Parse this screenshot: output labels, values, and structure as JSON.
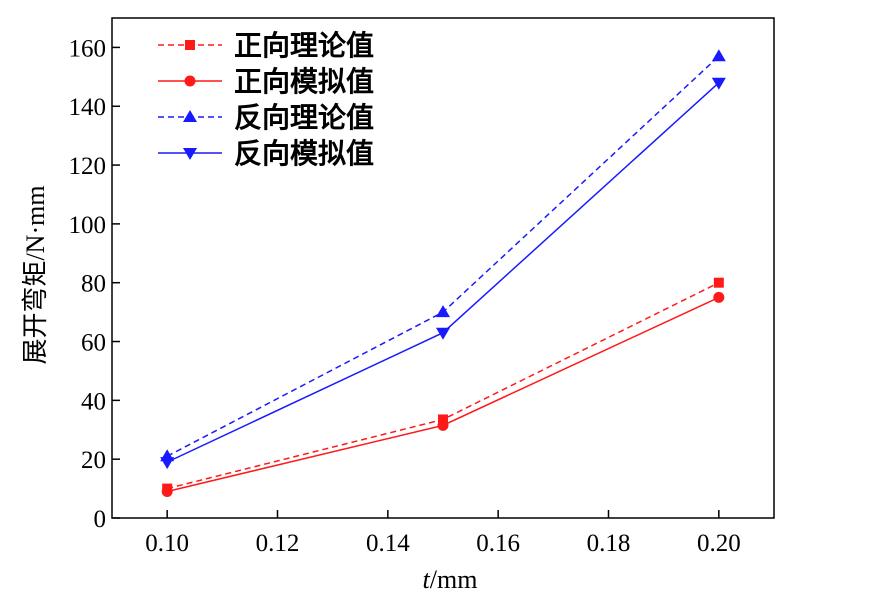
{
  "chart_data": {
    "type": "line",
    "xlabel_italic": "t",
    "xlabel_unit": "/mm",
    "ylabel": "展开弯矩/N·mm",
    "xlim": [
      0.09,
      0.21
    ],
    "ylim": [
      0,
      170
    ],
    "xticks": [
      "0.10",
      "0.12",
      "0.14",
      "0.16",
      "0.18",
      "0.20"
    ],
    "yticks": [
      "0",
      "20",
      "40",
      "60",
      "80",
      "100",
      "120",
      "140",
      "160"
    ],
    "x": [
      0.1,
      0.15,
      0.2
    ],
    "legend_position": "top-left",
    "series": [
      {
        "name": "正向理论值",
        "values": [
          10,
          33.5,
          80
        ],
        "color": "#ff1a1a",
        "dash": "dashed",
        "marker": "square"
      },
      {
        "name": "正向模拟值",
        "values": [
          9,
          31.5,
          75
        ],
        "color": "#ff1a1a",
        "dash": "solid",
        "marker": "circle"
      },
      {
        "name": "反向理论值",
        "values": [
          21,
          70,
          157
        ],
        "color": "#1a1aff",
        "dash": "dashed",
        "marker": "triangle-up"
      },
      {
        "name": "反向模拟值",
        "values": [
          19,
          63,
          148
        ],
        "color": "#1a1aff",
        "dash": "solid",
        "marker": "triangle-down"
      }
    ]
  }
}
